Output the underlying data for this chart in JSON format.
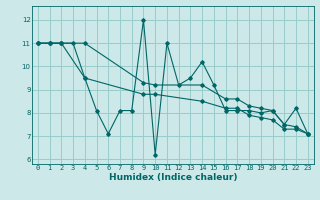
{
  "xlabel": "Humidex (Indice chaleur)",
  "bg_color": "#cce8e8",
  "line_color": "#006666",
  "grid_color": "#99cccc",
  "xlim": [
    -0.5,
    23.5
  ],
  "ylim": [
    5.8,
    12.6
  ],
  "yticks": [
    6,
    7,
    8,
    9,
    10,
    11,
    12
  ],
  "xticks": [
    0,
    1,
    2,
    3,
    4,
    5,
    6,
    7,
    8,
    9,
    10,
    11,
    12,
    13,
    14,
    15,
    16,
    17,
    18,
    19,
    20,
    21,
    22,
    23
  ],
  "line1_x": [
    0,
    1,
    2,
    3,
    4,
    5,
    6,
    7,
    8,
    9,
    10,
    11,
    12,
    13,
    14,
    15,
    16,
    17,
    18,
    19,
    20,
    21,
    22,
    23
  ],
  "line1_y": [
    11,
    11,
    11,
    11,
    9.5,
    8.1,
    7.1,
    8.1,
    8.1,
    12,
    6.2,
    11,
    9.2,
    9.5,
    10.2,
    9.2,
    8.1,
    8.1,
    8.1,
    8.0,
    8.1,
    7.5,
    8.2,
    7.1
  ],
  "line2_x": [
    0,
    1,
    2,
    4,
    9,
    10,
    14,
    16,
    17,
    18,
    19,
    20,
    21,
    22,
    23
  ],
  "line2_y": [
    11,
    11,
    11,
    11,
    9.3,
    9.2,
    9.2,
    8.6,
    8.6,
    8.3,
    8.2,
    8.1,
    7.5,
    7.4,
    7.1
  ],
  "line3_x": [
    0,
    1,
    2,
    4,
    9,
    10,
    14,
    16,
    17,
    18,
    19,
    20,
    21,
    22,
    23
  ],
  "line3_y": [
    11,
    11,
    11,
    9.5,
    8.8,
    8.8,
    8.5,
    8.2,
    8.2,
    7.9,
    7.8,
    7.7,
    7.3,
    7.3,
    7.1
  ],
  "tick_fontsize": 5.0,
  "xlabel_fontsize": 6.5
}
